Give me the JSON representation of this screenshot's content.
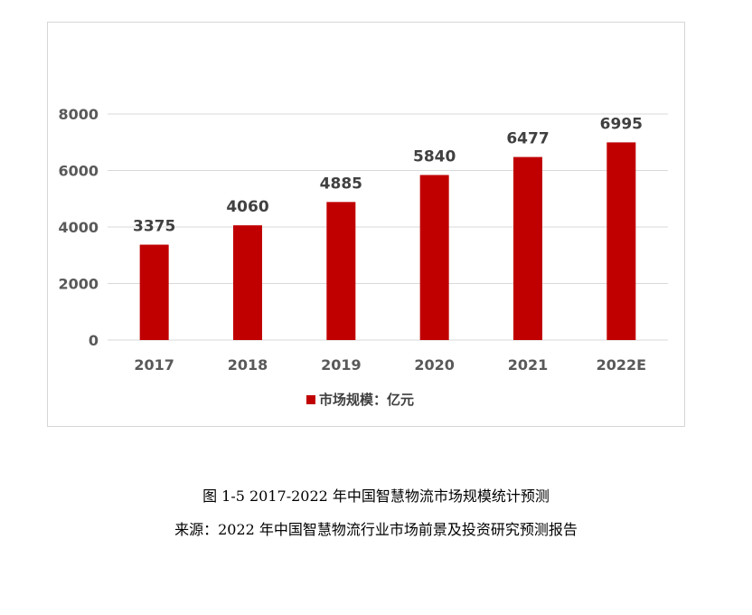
{
  "chart_data": {
    "type": "bar",
    "categories": [
      "2017",
      "2018",
      "2019",
      "2020",
      "2021",
      "2022E"
    ],
    "series": [
      {
        "name": "市场规模：亿元",
        "values": [
          3375,
          4060,
          4885,
          5840,
          6477,
          6995
        ]
      }
    ],
    "ylim": [
      0,
      8000
    ],
    "yticks": [
      0,
      2000,
      4000,
      6000,
      8000
    ],
    "grid": true,
    "legend": "bottom-center",
    "bar_color": "#C00000",
    "gridline_color": "#D9D9D9",
    "data_labels": true
  },
  "caption": {
    "title": "图 1-5 2017-2022 年中国智慧物流市场规模统计预测",
    "source": "来源：2022 年中国智慧物流行业市场前景及投资研究预测报告"
  }
}
